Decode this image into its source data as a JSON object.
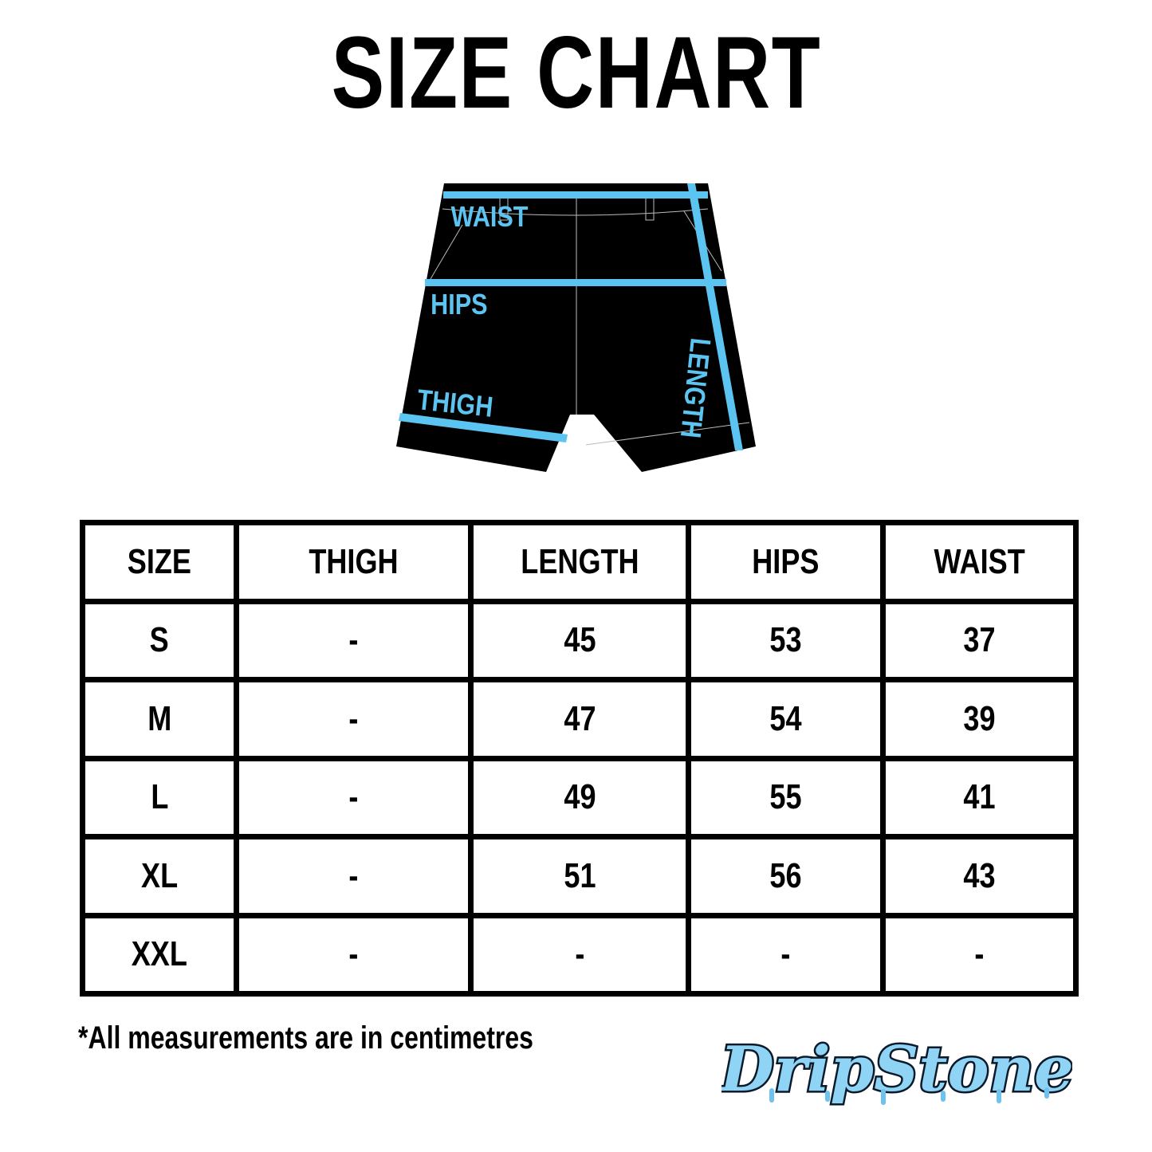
{
  "title": "SIZE CHART",
  "diagram": {
    "labels": {
      "waist": "WAIST",
      "hips": "HIPS",
      "thigh": "THIGH",
      "length": "LENGTH"
    },
    "accent_color": "#5BC4F1",
    "garment_color": "#000000"
  },
  "table": {
    "headers": [
      "SIZE",
      "THIGH",
      "LENGTH",
      "HIPS",
      "WAIST"
    ],
    "rows": [
      [
        "S",
        "-",
        "45",
        "53",
        "37"
      ],
      [
        "M",
        "-",
        "47",
        "54",
        "39"
      ],
      [
        "L",
        "-",
        "49",
        "55",
        "41"
      ],
      [
        "XL",
        "-",
        "51",
        "56",
        "43"
      ],
      [
        "XXL",
        "-",
        "-",
        "-",
        "-"
      ]
    ]
  },
  "note": "*All measurements are in centimetres",
  "logo": {
    "text": "DripStone",
    "color": "#4AA8E0"
  }
}
